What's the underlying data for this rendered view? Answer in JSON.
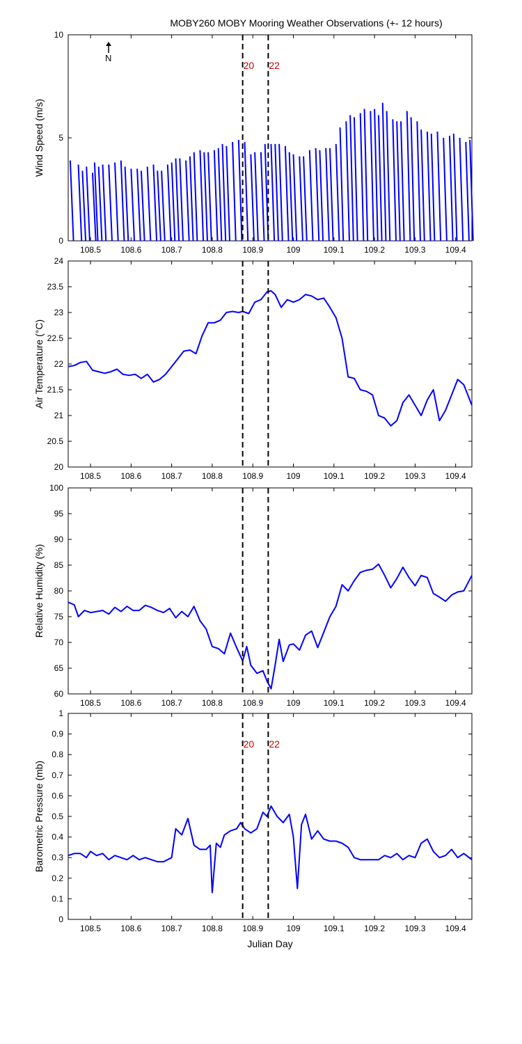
{
  "figure": {
    "title": "MOBY260 MOBY Mooring Weather Observations (+- 12 hours)",
    "north_arrow_label": "N",
    "xlabel": "Julian Day"
  },
  "colors": {
    "series": "#0000ff",
    "marker_label": "#cc0000",
    "axes": "#000000"
  },
  "chart_data": [
    {
      "type": "line",
      "name": "wind",
      "ylabel": "Wind Speed (m/s)",
      "xlim": [
        108.445,
        109.44
      ],
      "ylim": [
        0,
        10
      ],
      "yticks": [
        0,
        5,
        10
      ],
      "xticks": [
        108.5,
        108.6,
        108.7,
        108.8,
        108.9,
        109,
        109.1,
        109.2,
        109.3,
        109.4
      ],
      "markers": [
        {
          "x": 108.875,
          "label": "20"
        },
        {
          "x": 108.938,
          "label": "22"
        }
      ],
      "vector_ticks": [
        {
          "x": 108.45,
          "y": 3.9
        },
        {
          "x": 108.47,
          "y": 3.7
        },
        {
          "x": 108.48,
          "y": 3.4
        },
        {
          "x": 108.49,
          "y": 3.6
        },
        {
          "x": 108.505,
          "y": 3.3
        },
        {
          "x": 108.51,
          "y": 3.8
        },
        {
          "x": 108.52,
          "y": 3.6
        },
        {
          "x": 108.53,
          "y": 3.7
        },
        {
          "x": 108.545,
          "y": 3.7
        },
        {
          "x": 108.56,
          "y": 3.8
        },
        {
          "x": 108.575,
          "y": 3.9
        },
        {
          "x": 108.585,
          "y": 3.6
        },
        {
          "x": 108.6,
          "y": 3.5
        },
        {
          "x": 108.615,
          "y": 3.5
        },
        {
          "x": 108.625,
          "y": 3.4
        },
        {
          "x": 108.64,
          "y": 3.6
        },
        {
          "x": 108.655,
          "y": 3.7
        },
        {
          "x": 108.665,
          "y": 3.4
        },
        {
          "x": 108.675,
          "y": 3.4
        },
        {
          "x": 108.69,
          "y": 3.7
        },
        {
          "x": 108.7,
          "y": 3.8
        },
        {
          "x": 108.71,
          "y": 4.0
        },
        {
          "x": 108.72,
          "y": 4.0
        },
        {
          "x": 108.735,
          "y": 3.9
        },
        {
          "x": 108.745,
          "y": 4.1
        },
        {
          "x": 108.755,
          "y": 4.3
        },
        {
          "x": 108.77,
          "y": 4.4
        },
        {
          "x": 108.78,
          "y": 4.3
        },
        {
          "x": 108.79,
          "y": 4.3
        },
        {
          "x": 108.805,
          "y": 4.4
        },
        {
          "x": 108.815,
          "y": 4.5
        },
        {
          "x": 108.825,
          "y": 4.7
        },
        {
          "x": 108.835,
          "y": 4.6
        },
        {
          "x": 108.85,
          "y": 4.8
        },
        {
          "x": 108.865,
          "y": 4.9
        },
        {
          "x": 108.88,
          "y": 4.8
        },
        {
          "x": 108.895,
          "y": 4.2
        },
        {
          "x": 108.905,
          "y": 4.3
        },
        {
          "x": 108.92,
          "y": 4.3
        },
        {
          "x": 108.93,
          "y": 4.7
        },
        {
          "x": 108.945,
          "y": 4.7
        },
        {
          "x": 108.955,
          "y": 4.7
        },
        {
          "x": 108.965,
          "y": 4.7
        },
        {
          "x": 108.98,
          "y": 4.6
        },
        {
          "x": 108.99,
          "y": 4.3
        },
        {
          "x": 109.0,
          "y": 4.2
        },
        {
          "x": 109.015,
          "y": 4.1
        },
        {
          "x": 109.025,
          "y": 4.1
        },
        {
          "x": 109.04,
          "y": 4.4
        },
        {
          "x": 109.055,
          "y": 4.5
        },
        {
          "x": 109.065,
          "y": 4.4
        },
        {
          "x": 109.08,
          "y": 4.5
        },
        {
          "x": 109.09,
          "y": 4.5
        },
        {
          "x": 109.105,
          "y": 4.7
        },
        {
          "x": 109.115,
          "y": 5.5
        },
        {
          "x": 109.13,
          "y": 5.8
        },
        {
          "x": 109.14,
          "y": 6.1
        },
        {
          "x": 109.15,
          "y": 6.0
        },
        {
          "x": 109.165,
          "y": 6.2
        },
        {
          "x": 109.175,
          "y": 6.4
        },
        {
          "x": 109.19,
          "y": 6.3
        },
        {
          "x": 109.2,
          "y": 6.4
        },
        {
          "x": 109.21,
          "y": 6.1
        },
        {
          "x": 109.22,
          "y": 6.7
        },
        {
          "x": 109.23,
          "y": 6.3
        },
        {
          "x": 109.245,
          "y": 5.9
        },
        {
          "x": 109.255,
          "y": 5.8
        },
        {
          "x": 109.265,
          "y": 5.8
        },
        {
          "x": 109.28,
          "y": 6.3
        },
        {
          "x": 109.29,
          "y": 6.0
        },
        {
          "x": 109.305,
          "y": 5.8
        },
        {
          "x": 109.315,
          "y": 5.4
        },
        {
          "x": 109.33,
          "y": 5.3
        },
        {
          "x": 109.34,
          "y": 5.2
        },
        {
          "x": 109.355,
          "y": 5.3
        },
        {
          "x": 109.37,
          "y": 5.0
        },
        {
          "x": 109.385,
          "y": 5.1
        },
        {
          "x": 109.395,
          "y": 5.2
        },
        {
          "x": 109.41,
          "y": 5.0
        },
        {
          "x": 109.425,
          "y": 4.8
        },
        {
          "x": 109.435,
          "y": 4.9
        }
      ]
    },
    {
      "type": "line",
      "name": "temp",
      "ylabel": "Air Temperature (°C)",
      "xlim": [
        108.445,
        109.44
      ],
      "ylim": [
        20,
        24
      ],
      "yticks": [
        20,
        20.5,
        21,
        21.5,
        22,
        22.5,
        23,
        23.5,
        24
      ],
      "xticks": [
        108.5,
        108.6,
        108.7,
        108.8,
        108.9,
        109,
        109.1,
        109.2,
        109.3,
        109.4
      ],
      "markers": [
        {
          "x": 108.875,
          "label": ""
        },
        {
          "x": 108.938,
          "label": ""
        }
      ],
      "x": [
        108.445,
        108.46,
        108.475,
        108.49,
        108.505,
        108.52,
        108.535,
        108.55,
        108.565,
        108.58,
        108.595,
        108.61,
        108.625,
        108.64,
        108.655,
        108.67,
        108.685,
        108.7,
        108.715,
        108.73,
        108.745,
        108.76,
        108.775,
        108.79,
        108.805,
        108.82,
        108.835,
        108.85,
        108.865,
        108.875,
        108.89,
        108.905,
        108.92,
        108.935,
        108.945,
        108.955,
        108.97,
        108.985,
        109.0,
        109.015,
        109.03,
        109.045,
        109.06,
        109.075,
        109.09,
        109.105,
        109.12,
        109.135,
        109.15,
        109.165,
        109.18,
        109.195,
        109.21,
        109.225,
        109.24,
        109.255,
        109.27,
        109.285,
        109.3,
        109.315,
        109.33,
        109.345,
        109.36,
        109.375,
        109.39,
        109.405,
        109.42,
        109.44
      ],
      "y": [
        21.95,
        21.97,
        22.03,
        22.05,
        21.88,
        21.85,
        21.82,
        21.85,
        21.9,
        21.8,
        21.78,
        21.8,
        21.72,
        21.8,
        21.65,
        21.7,
        21.8,
        21.95,
        22.1,
        22.25,
        22.27,
        22.2,
        22.55,
        22.8,
        22.8,
        22.85,
        23.0,
        23.02,
        23.0,
        23.02,
        22.98,
        23.2,
        23.25,
        23.4,
        23.42,
        23.35,
        23.1,
        23.25,
        23.2,
        23.25,
        23.35,
        23.32,
        23.25,
        23.28,
        23.1,
        22.9,
        22.5,
        21.75,
        21.72,
        21.5,
        21.47,
        21.4,
        21.0,
        20.95,
        20.8,
        20.9,
        21.25,
        21.4,
        21.2,
        21.0,
        21.3,
        21.5,
        20.9,
        21.1,
        21.4,
        21.7,
        21.6,
        21.2
      ]
    },
    {
      "type": "line",
      "name": "rh",
      "ylabel": "Relative Humidity (%)",
      "xlim": [
        108.445,
        109.44
      ],
      "ylim": [
        60,
        100
      ],
      "yticks": [
        60,
        65,
        70,
        75,
        80,
        85,
        90,
        95,
        100
      ],
      "xticks": [
        108.5,
        108.6,
        108.7,
        108.8,
        108.9,
        109,
        109.1,
        109.2,
        109.3,
        109.4
      ],
      "markers": [
        {
          "x": 108.875,
          "label": ""
        },
        {
          "x": 108.938,
          "label": ""
        }
      ],
      "x": [
        108.445,
        108.46,
        108.47,
        108.485,
        108.5,
        108.515,
        108.53,
        108.545,
        108.56,
        108.575,
        108.59,
        108.605,
        108.62,
        108.635,
        108.65,
        108.665,
        108.68,
        108.695,
        108.71,
        108.725,
        108.74,
        108.755,
        108.77,
        108.785,
        108.8,
        108.815,
        108.83,
        108.845,
        108.86,
        108.875,
        108.885,
        108.895,
        108.91,
        108.925,
        108.935,
        108.945,
        108.955,
        108.965,
        108.975,
        108.99,
        109.0,
        109.015,
        109.03,
        109.045,
        109.06,
        109.075,
        109.09,
        109.105,
        109.12,
        109.135,
        109.15,
        109.165,
        109.18,
        109.195,
        109.21,
        109.225,
        109.24,
        109.255,
        109.27,
        109.285,
        109.3,
        109.315,
        109.33,
        109.345,
        109.36,
        109.375,
        109.39,
        109.405,
        109.42,
        109.44
      ],
      "y": [
        77.8,
        77.3,
        75.0,
        76.2,
        75.8,
        76.0,
        76.2,
        75.5,
        76.8,
        76.0,
        77.0,
        76.2,
        76.2,
        77.2,
        76.8,
        76.2,
        75.8,
        76.6,
        74.8,
        76.0,
        75.0,
        77.0,
        74.2,
        72.6,
        69.2,
        68.8,
        67.8,
        71.8,
        69.0,
        66.4,
        69.2,
        65.6,
        64.0,
        64.5,
        62.5,
        61.0,
        65.6,
        70.6,
        66.3,
        69.5,
        69.7,
        68.5,
        71.4,
        72.2,
        69.0,
        72.0,
        75.0,
        77.0,
        81.2,
        80.0,
        82.0,
        83.6,
        84.0,
        84.2,
        85.2,
        83.0,
        80.6,
        82.4,
        84.6,
        82.6,
        81.0,
        83.0,
        82.6,
        79.5,
        78.8,
        78.0,
        79.2,
        79.8,
        80.0,
        83.0
      ]
    },
    {
      "type": "line",
      "name": "baro",
      "ylabel": "Barometric Pressure (mb)",
      "xlim": [
        108.445,
        109.44
      ],
      "ylim": [
        0,
        1
      ],
      "yticks": [
        0,
        0.1,
        0.2,
        0.3,
        0.4,
        0.5,
        0.6,
        0.7,
        0.8,
        0.9,
        1
      ],
      "ytick_labels": [
        "0",
        "0.1",
        "0.2",
        "0.3",
        "0.4",
        "0.5",
        "0.6",
        "0.7",
        "0.8",
        "0.9",
        "1"
      ],
      "xticks": [
        108.5,
        108.6,
        108.7,
        108.8,
        108.9,
        109,
        109.1,
        109.2,
        109.3,
        109.4
      ],
      "markers": [
        {
          "x": 108.875,
          "label": "20"
        },
        {
          "x": 108.938,
          "label": "22"
        }
      ],
      "x": [
        108.445,
        108.46,
        108.475,
        108.49,
        108.5,
        108.515,
        108.53,
        108.545,
        108.56,
        108.575,
        108.59,
        108.605,
        108.62,
        108.635,
        108.65,
        108.665,
        108.68,
        108.69,
        108.7,
        108.71,
        108.725,
        108.74,
        108.755,
        108.77,
        108.785,
        108.795,
        108.8,
        108.81,
        108.82,
        108.83,
        108.845,
        108.86,
        108.87,
        108.88,
        108.895,
        108.91,
        108.925,
        108.935,
        108.945,
        108.96,
        108.975,
        108.99,
        109.0,
        109.01,
        109.02,
        109.03,
        109.045,
        109.06,
        109.075,
        109.09,
        109.105,
        109.12,
        109.135,
        109.15,
        109.165,
        109.18,
        109.195,
        109.21,
        109.225,
        109.24,
        109.255,
        109.27,
        109.285,
        109.3,
        109.315,
        109.33,
        109.345,
        109.36,
        109.375,
        109.39,
        109.405,
        109.42,
        109.44
      ],
      "y": [
        0.31,
        0.32,
        0.32,
        0.3,
        0.33,
        0.31,
        0.32,
        0.29,
        0.31,
        0.3,
        0.29,
        0.31,
        0.29,
        0.3,
        0.29,
        0.28,
        0.28,
        0.29,
        0.3,
        0.44,
        0.41,
        0.49,
        0.36,
        0.34,
        0.34,
        0.36,
        0.13,
        0.37,
        0.35,
        0.41,
        0.43,
        0.44,
        0.47,
        0.44,
        0.42,
        0.44,
        0.52,
        0.5,
        0.55,
        0.5,
        0.47,
        0.51,
        0.4,
        0.15,
        0.46,
        0.51,
        0.39,
        0.43,
        0.39,
        0.38,
        0.38,
        0.37,
        0.35,
        0.3,
        0.29,
        0.29,
        0.29,
        0.29,
        0.31,
        0.3,
        0.32,
        0.29,
        0.31,
        0.3,
        0.37,
        0.39,
        0.33,
        0.3,
        0.31,
        0.34,
        0.3,
        0.32,
        0.29
      ]
    }
  ]
}
